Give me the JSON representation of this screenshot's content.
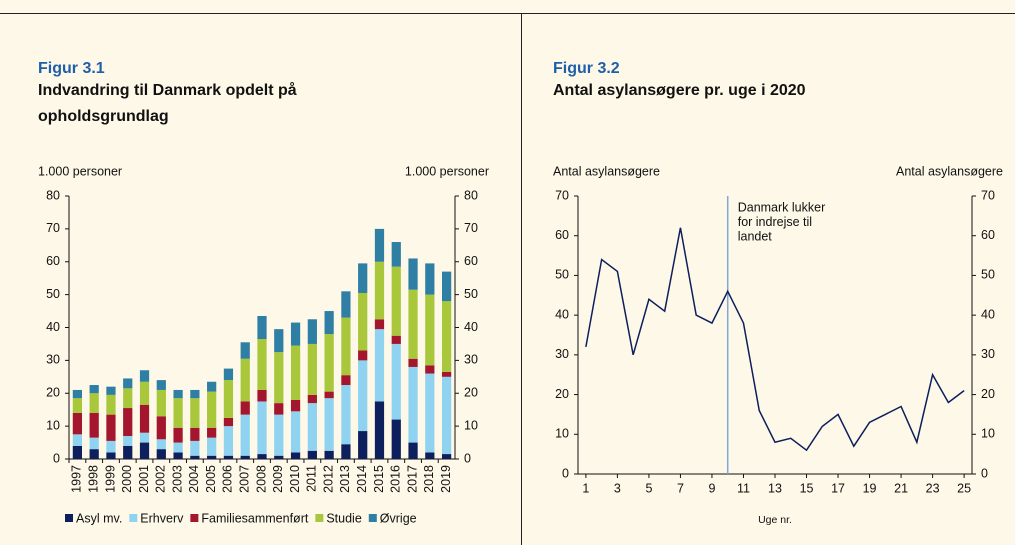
{
  "chart_data": [
    {
      "type": "stacked_bar",
      "figure": "Figur 3.1",
      "title": "Indvandring til Danmark opdelt på opholdsgrundlag",
      "ylabel": "1.000 personer",
      "y2label": "1.000 personer",
      "categories": [
        "1997",
        "1998",
        "1999",
        "2000",
        "2001",
        "2002",
        "2003",
        "2004",
        "2005",
        "2006",
        "2007",
        "2008",
        "2009",
        "2010",
        "2011",
        "2012",
        "2013",
        "2014",
        "2015",
        "2016",
        "2017",
        "2018",
        "2019"
      ],
      "series": [
        {
          "name": "Asyl mv.",
          "color": "#0d1f5c",
          "values": [
            4,
            3,
            2,
            4,
            5,
            3,
            2,
            1,
            1,
            1,
            1,
            1.5,
            1,
            2,
            2.5,
            2.5,
            4.5,
            8.5,
            17.5,
            12,
            5,
            2,
            1.5
          ]
        },
        {
          "name": "Erhverv",
          "color": "#8fd3f0",
          "values": [
            3.5,
            3.5,
            3.5,
            3,
            3,
            3,
            3,
            4.5,
            5.5,
            9,
            12.5,
            16,
            12.5,
            12.5,
            14.5,
            16,
            18,
            21.5,
            22,
            23,
            23,
            24,
            23.5
          ]
        },
        {
          "name": "Familiesammenført",
          "color": "#a3162d",
          "values": [
            6.5,
            7.5,
            8,
            8.5,
            8.5,
            7,
            4.5,
            4,
            3,
            2.5,
            4,
            3.5,
            3.5,
            3.5,
            2.5,
            2,
            3,
            3,
            3,
            2.5,
            2.5,
            2.5,
            1.5
          ]
        },
        {
          "name": "Studie",
          "color": "#a8c73a",
          "values": [
            4.5,
            6,
            6,
            6,
            7,
            8,
            9,
            9,
            11,
            11.5,
            13,
            15.5,
            15.5,
            16.5,
            15.5,
            17.5,
            17.5,
            17.5,
            17.5,
            21,
            21,
            21.5,
            21.5
          ]
        },
        {
          "name": "Øvrige",
          "color": "#2e7fa3",
          "values": [
            2.5,
            2.5,
            2.5,
            3,
            3.5,
            3,
            2.5,
            2.5,
            3,
            3.5,
            5,
            7,
            7,
            7,
            7.5,
            7,
            8,
            9,
            10,
            7.5,
            9.5,
            9.5,
            9
          ]
        }
      ],
      "ylim": [
        0,
        80
      ],
      "yticks": [
        0,
        10,
        20,
        30,
        40,
        50,
        60,
        70,
        80
      ],
      "y2lim": [
        0,
        80
      ],
      "y2ticks": [
        0,
        10,
        20,
        30,
        40,
        50,
        60,
        70,
        80
      ],
      "legend": "bottom"
    },
    {
      "type": "line",
      "figure": "Figur 3.2",
      "title": "Antal asylansøgere pr. uge i 2020",
      "ylabel": "Antal asylansøgere",
      "y2label": "Antal asylansøgere",
      "xlabel": "Uge nr.",
      "x": [
        1,
        2,
        3,
        4,
        5,
        6,
        7,
        8,
        9,
        10,
        11,
        12,
        13,
        14,
        15,
        16,
        17,
        18,
        19,
        20,
        21,
        22,
        23,
        24,
        25
      ],
      "series": [
        {
          "name": "Antal asylansøgere",
          "color": "#0d1f5c",
          "values": [
            32,
            54,
            51,
            30,
            44,
            41,
            62,
            40,
            38,
            46,
            38,
            16,
            8,
            9,
            6,
            12,
            15,
            7,
            13,
            15,
            17,
            8,
            25,
            18,
            21
          ]
        }
      ],
      "xlim": [
        0.5,
        25.5
      ],
      "xticks": [
        1,
        3,
        5,
        7,
        9,
        11,
        13,
        15,
        17,
        19,
        21,
        23,
        25
      ],
      "ylim": [
        0,
        70
      ],
      "yticks": [
        0,
        10,
        20,
        30,
        40,
        50,
        60,
        70
      ],
      "y2lim": [
        0,
        70
      ],
      "y2ticks": [
        0,
        10,
        20,
        30,
        40,
        50,
        60,
        70
      ],
      "annotation": {
        "x": 10,
        "color": "#7fa7d9",
        "lines": [
          "Danmark lukker",
          "for indrejse til",
          "landet"
        ]
      }
    }
  ]
}
